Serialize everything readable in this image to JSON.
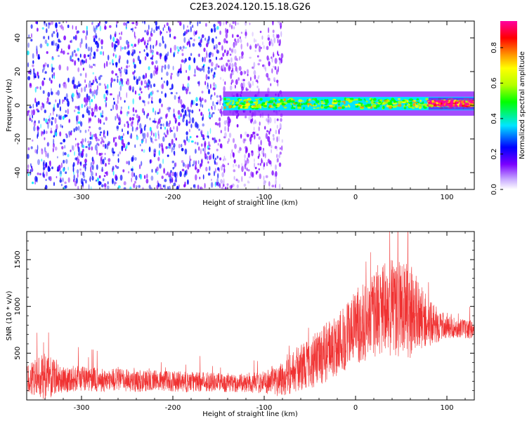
{
  "title": "C2E3.2024.120.15.18.G26",
  "chart_data": [
    {
      "type": "heatmap",
      "xlabel": "Height of straight line (km)",
      "ylabel": "Frequency (Hz)",
      "xlim": [
        -360,
        130
      ],
      "ylim": [
        -50,
        50
      ],
      "xticks": [
        -300,
        -200,
        -100,
        0,
        100
      ],
      "yticks": [
        -40,
        -20,
        0,
        20,
        40
      ],
      "grid": false,
      "colorbar": {
        "label": "Normalized spectral amplitude",
        "range": [
          0,
          0.95
        ],
        "ticks": [
          0.0,
          0.2,
          0.4,
          0.6,
          0.8
        ]
      },
      "regions": [
        {
          "x_range": [
            -360,
            -80
          ],
          "frequency_range": [
            -50,
            50
          ],
          "level": 0.15,
          "description": "broadband noise"
        },
        {
          "x_range": [
            -145,
            130
          ],
          "frequency_center": 1,
          "frequency_halfwidth": 4,
          "level": 0.55,
          "description": "signal band"
        },
        {
          "x_range": [
            80,
            130
          ],
          "frequency_center": 1,
          "frequency_halfwidth": 2,
          "level": 0.9,
          "description": "strong signal"
        }
      ]
    },
    {
      "type": "line",
      "xlabel": "Height of straight line (km)",
      "ylabel": "SNR (10 * v/v)",
      "xlim": [
        -360,
        130
      ],
      "ylim": [
        0,
        1800
      ],
      "xticks": [
        -300,
        -200,
        -100,
        0,
        100
      ],
      "yticks": [
        500,
        1000,
        1500
      ],
      "grid": false,
      "color": "#f03232",
      "x": [
        -360,
        -340,
        -320,
        -300,
        -280,
        -260,
        -240,
        -220,
        -200,
        -180,
        -160,
        -140,
        -120,
        -100,
        -80,
        -60,
        -40,
        -20,
        0,
        20,
        40,
        60,
        80,
        100,
        120,
        130
      ],
      "y": [
        230,
        250,
        220,
        230,
        210,
        220,
        200,
        210,
        200,
        190,
        200,
        180,
        180,
        190,
        230,
        350,
        450,
        600,
        780,
        900,
        1000,
        950,
        820,
        780,
        760,
        750
      ],
      "noise_amplitude": [
        150,
        250,
        140,
        140,
        130,
        120,
        120,
        110,
        110,
        110,
        110,
        100,
        100,
        120,
        200,
        250,
        300,
        350,
        400,
        450,
        550,
        500,
        250,
        120,
        100,
        100
      ]
    }
  ]
}
